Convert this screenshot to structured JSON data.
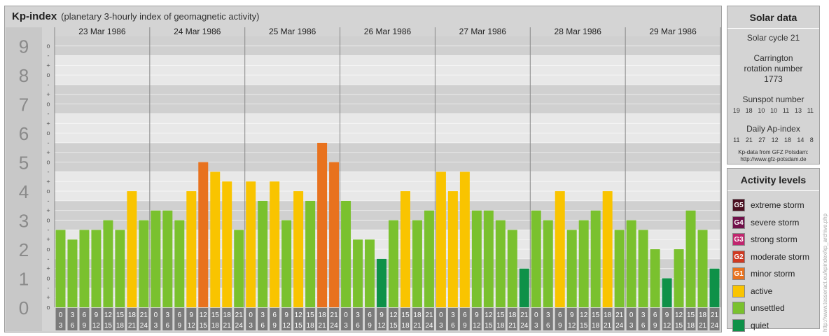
{
  "header": {
    "title": "Kp-index",
    "subtitle": "(planetary 3-hourly index of geomagnetic activity)"
  },
  "chart_data": {
    "type": "bar",
    "days": [
      "23 Mar 1986",
      "24 Mar 1986",
      "25 Mar 1986",
      "26 Mar 1986",
      "27 Mar 1986",
      "28 Mar 1986",
      "29 Mar 1986"
    ],
    "interval_start_hours": [
      "0",
      "3",
      "6",
      "9",
      "12",
      "15",
      "18",
      "21"
    ],
    "interval_end_hours": [
      "3",
      "6",
      "9",
      "12",
      "15",
      "18",
      "21",
      "24"
    ],
    "y_ticks": [
      "0",
      "1",
      "2",
      "3",
      "4",
      "5",
      "6",
      "7",
      "8",
      "9"
    ],
    "sub_tick_labels": [
      "o",
      "+",
      "-"
    ],
    "ylim": [
      0,
      9.33
    ],
    "values": [
      [
        2.333,
        2.0,
        2.333,
        2.333,
        2.667,
        2.333,
        3.667,
        2.667
      ],
      [
        3.0,
        3.0,
        2.667,
        3.667,
        4.667,
        4.333,
        4.0,
        2.333
      ],
      [
        4.0,
        3.333,
        4.0,
        2.667,
        3.667,
        3.333,
        5.333,
        4.667
      ],
      [
        3.333,
        2.0,
        2.0,
        1.333,
        2.667,
        3.667,
        2.667,
        3.0
      ],
      [
        4.333,
        3.667,
        4.333,
        3.0,
        3.0,
        2.667,
        2.333,
        1.0
      ],
      [
        3.0,
        2.667,
        3.667,
        2.333,
        2.667,
        3.0,
        3.667,
        2.333
      ],
      [
        2.667,
        2.333,
        1.667,
        0.667,
        1.667,
        3.0,
        2.333,
        1.0
      ]
    ]
  },
  "solar": {
    "title": "Solar data",
    "cycle": "Solar cycle 21",
    "carrington": "Carrington rotation number 1773",
    "sunspot_label": "Sunspot number",
    "sunspot_values": [
      "19",
      "18",
      "10",
      "10",
      "11",
      "13",
      "11"
    ],
    "ap_label": "Daily Ap-index",
    "ap_values": [
      "11",
      "21",
      "27",
      "12",
      "18",
      "14",
      "8"
    ],
    "source_line1": "Kp-data from GFZ Potsdam:",
    "source_line2": "http://www.gfz-potsdam.de"
  },
  "activity": {
    "title": "Activity levels",
    "levels": [
      {
        "code": "G5",
        "label": "extreme storm",
        "color": "#4a0e1f"
      },
      {
        "code": "G4",
        "label": "severe storm",
        "color": "#70104a"
      },
      {
        "code": "G3",
        "label": "strong storm",
        "color": "#c0256e"
      },
      {
        "code": "G2",
        "label": "moderate storm",
        "color": "#cf3a22"
      },
      {
        "code": "G1",
        "label": "minor storm",
        "color": "#e8721e"
      },
      {
        "code": "",
        "label": "active",
        "color": "#f9c400"
      },
      {
        "code": "",
        "label": "unsettled",
        "color": "#7ac12e"
      },
      {
        "code": "",
        "label": "quiet",
        "color": "#0e9148"
      }
    ]
  },
  "credit": "http://www.tesseract.eu/kpindex/kp_archive.php"
}
